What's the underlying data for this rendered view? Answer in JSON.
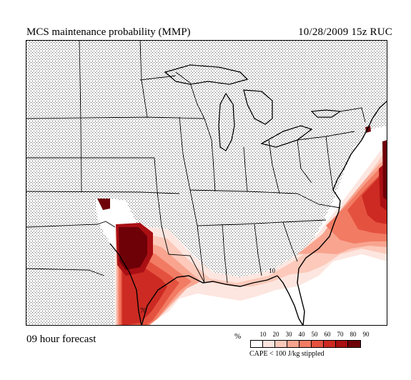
{
  "header": {
    "title": "MCS maintenance probability (MMP)",
    "timestamp": "10/28/2009  15z  RUC"
  },
  "footer": {
    "forecast": "09 hour forecast",
    "units": "%",
    "note": "CAPE < 100 J/kg stippled"
  },
  "legend": {
    "ticks": [
      "10",
      "20",
      "30",
      "40",
      "50",
      "60",
      "70",
      "80",
      "90"
    ],
    "colors": [
      "#ffffff",
      "#fde6e0",
      "#fcc9ba",
      "#f8a48f",
      "#f27b63",
      "#e4523f",
      "#cc2a22",
      "#a90f13",
      "#6e0008"
    ]
  },
  "map": {
    "contour_labels": [
      "70",
      "10"
    ],
    "stipple_color": "#555555",
    "border_color": "#000000"
  }
}
